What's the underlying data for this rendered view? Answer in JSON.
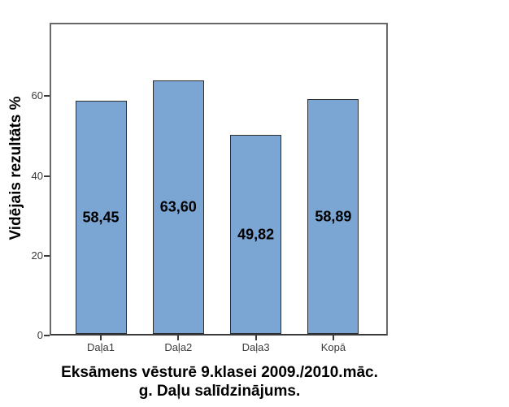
{
  "chart_data": {
    "type": "bar",
    "title": "Eksāmens vēsturē 9.klasei 2009./2010.māc. g. Daļu salīdzinājums.",
    "title_lines": [
      "Eksāmens vēsturē 9.klasei 2009./2010.māc.",
      "g. Daļu salīdzinājums."
    ],
    "ylabel": "Vidējais rezultāts %",
    "xlabel": "",
    "categories": [
      "Daļa1",
      "Daļa2",
      "Daļa3",
      "Kopā"
    ],
    "values": [
      58.45,
      63.6,
      49.82,
      58.89
    ],
    "value_labels": [
      "58,45",
      "63,60",
      "49,82",
      "58,89"
    ],
    "decimal_separator": ",",
    "yticks": [
      0,
      20,
      40,
      60
    ],
    "ytick_labels": [
      "0",
      "20",
      "40",
      "60"
    ],
    "ylim": [
      0,
      78
    ],
    "grid": false,
    "legend": "none",
    "colors": {
      "bar_fill": "#7BA5D3",
      "bar_border": "#2e2e2e",
      "frame": "#686868",
      "axis_line": "#3a3a3a",
      "tick_label": "#3a3a3a",
      "text": "#000000",
      "background": "#ffffff"
    }
  }
}
